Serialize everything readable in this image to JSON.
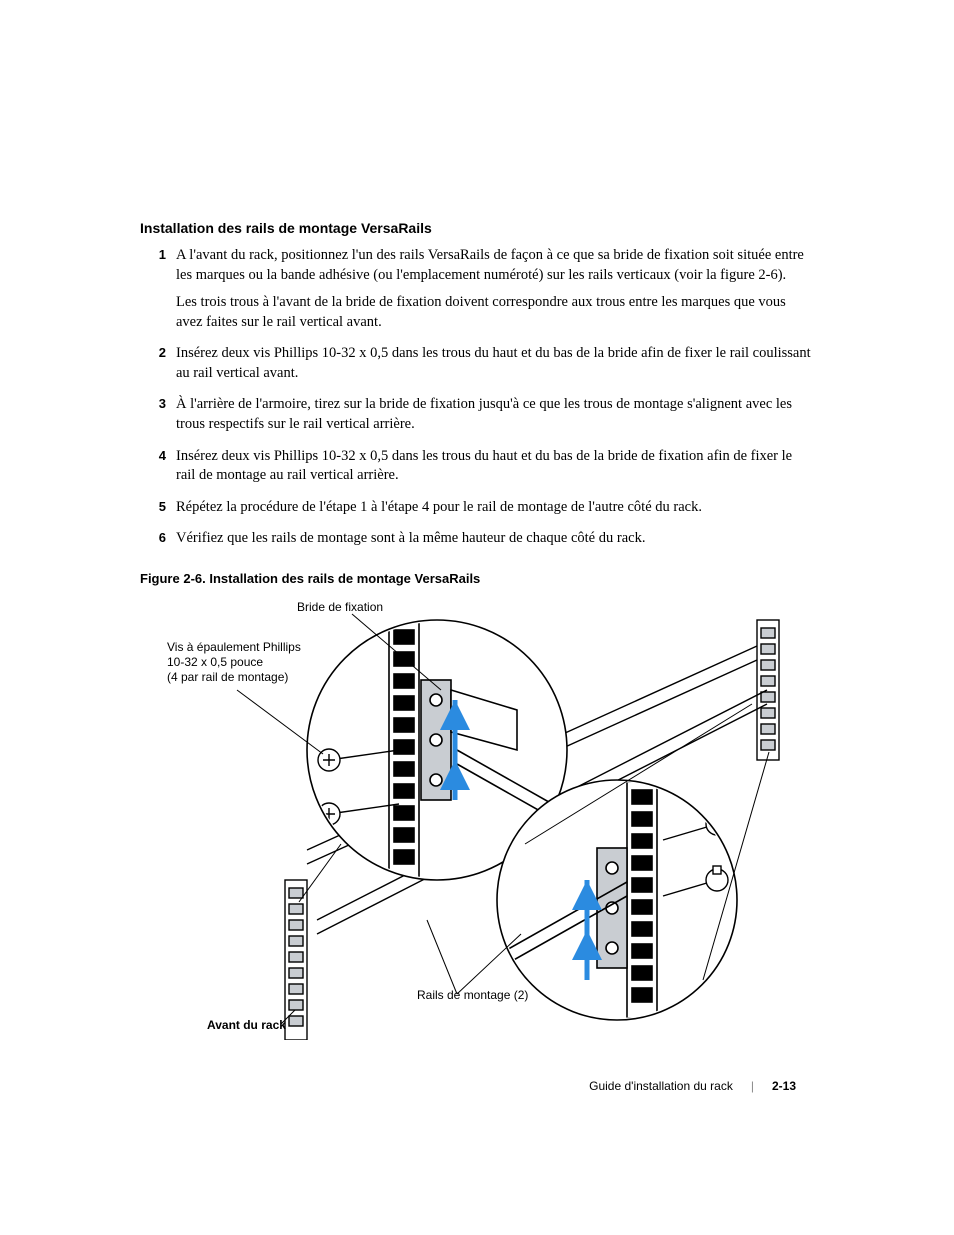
{
  "colors": {
    "text": "#000000",
    "background": "#ffffff",
    "diagram_stroke": "#000000",
    "diagram_highlight": "#2b8be0",
    "diagram_shade": "#c9cdd2",
    "footer_sep": "#888888"
  },
  "heading": "Installation des rails de montage VersaRails",
  "steps": [
    {
      "n": "1",
      "paras": [
        "A l'avant du rack, positionnez l'un des rails VersaRails de façon à ce que sa bride de fixation soit située entre les marques ou la bande adhésive (ou l'emplacement numéroté) sur les rails verticaux (voir la figure 2-6).",
        "Les trois trous à l'avant de la bride de fixation doivent correspondre aux trous entre les marques que vous avez faites sur le rail vertical avant."
      ]
    },
    {
      "n": "2",
      "paras": [
        "Insérez deux vis Phillips 10-32 x 0,5 dans les trous du haut et du bas de la bride afin de fixer le rail coulissant au rail vertical avant."
      ]
    },
    {
      "n": "3",
      "paras": [
        "À l'arrière de l'armoire, tirez sur la bride de fixation jusqu'à ce que les trous de montage s'alignent avec les trous respectifs sur le rail vertical arrière."
      ]
    },
    {
      "n": "4",
      "paras": [
        "Insérez deux vis Phillips 10-32 x 0,5 dans les trous du haut et du bas de la bride de fixation afin de fixer le rail de montage au rail vertical arrière."
      ]
    },
    {
      "n": "5",
      "paras": [
        "Répétez la procédure de l'étape 1 à l'étape 4 pour le rail de montage de l'autre côté du rack."
      ]
    },
    {
      "n": "6",
      "paras": [
        "Vérifiez que les rails de montage sont à la même hauteur de chaque côté du rack."
      ]
    }
  ],
  "figure": {
    "caption": "Figure 2-6.    Installation des rails de montage VersaRails",
    "callouts": {
      "bride": "Bride de fixation",
      "vis": "Vis à épaulement Phillips\n10-32 x 0,5 pouce\n(4 par rail de montage)",
      "rails": "Rails de montage (2)",
      "avant": "Avant du rack"
    }
  },
  "footer": {
    "guide": "Guide d'installation du rack",
    "page": "2-13"
  }
}
